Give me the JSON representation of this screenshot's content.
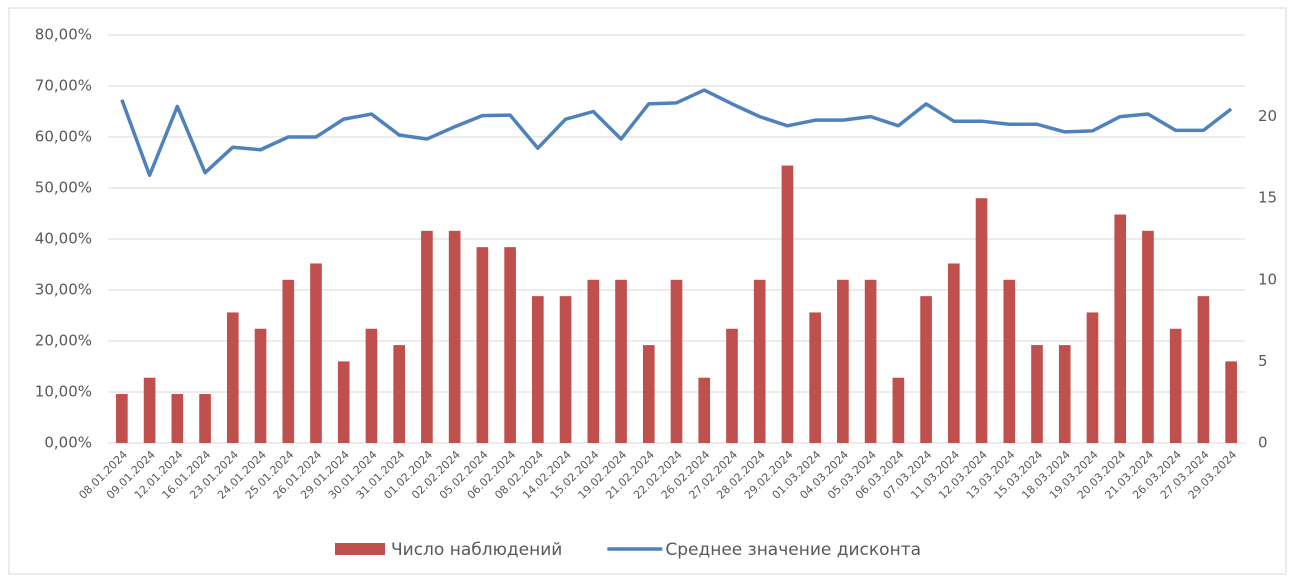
{
  "chart_data": {
    "type": "bar-line",
    "categories": [
      "08.01.2024",
      "09.01.2024",
      "12.01.2024",
      "16.01.2024",
      "23.01.2024",
      "24.01.2024",
      "25.01.2024",
      "26.01.2024",
      "29.01.2024",
      "30.01.2024",
      "31.01.2024",
      "01.02.2024",
      "02.02.2024",
      "05.02.2024",
      "06.02.2024",
      "08.02.2024",
      "14.02.2024",
      "15.02.2024",
      "19.02.2024",
      "21.02.2024",
      "22.02.2024",
      "26.02.2024",
      "27.02.2024",
      "28.02.2024",
      "29.02.2024",
      "01.03.2024",
      "04.03.2024",
      "05.03.2024",
      "06.03.2024",
      "07.03.2024",
      "11.03.2024",
      "12.03.2024",
      "13.03.2024",
      "15.03.2024",
      "18.03.2024",
      "19.03.2024",
      "20.03.2024",
      "21.03.2024",
      "26.03.2024",
      "27.03.2024",
      "29.03.2024"
    ],
    "series": [
      {
        "name": "Число наблюдений",
        "type": "bar",
        "axis": "y2",
        "color": "#c0504d",
        "values": [
          3,
          4,
          3,
          3,
          8,
          7,
          10,
          11,
          5,
          7,
          6,
          13,
          13,
          12,
          12,
          9,
          9,
          10,
          10,
          6,
          10,
          4,
          7,
          10,
          17,
          8,
          10,
          10,
          4,
          9,
          11,
          15,
          10,
          6,
          6,
          8,
          14,
          13,
          7,
          9,
          5
        ]
      },
      {
        "name": "Среднее значение дисконта",
        "type": "line",
        "axis": "y",
        "color": "#4f81bd",
        "values": [
          67.3,
          52.5,
          66,
          53,
          58,
          57.5,
          60,
          60,
          63.5,
          64.5,
          60.4,
          59.6,
          62,
          64.2,
          64.3,
          57.8,
          63.5,
          65,
          59.6,
          66.5,
          66.7,
          69.2,
          66.5,
          64,
          62.2,
          63.3,
          63.3,
          64,
          62.2,
          66.5,
          63.1,
          63.1,
          62.5,
          62.5,
          61,
          61.2,
          64,
          64.5,
          61.3,
          61.3,
          65.5
        ]
      }
    ],
    "ylim": [
      0,
      80
    ],
    "yticks": [
      {
        "value": 0,
        "label": "0,00%"
      },
      {
        "value": 10,
        "label": "10,00%"
      },
      {
        "value": 20,
        "label": "20,00%"
      },
      {
        "value": 30,
        "label": "30,00%"
      },
      {
        "value": 40,
        "label": "40,00%"
      },
      {
        "value": 50,
        "label": "50,00%"
      },
      {
        "value": 60,
        "label": "60,00%"
      },
      {
        "value": 70,
        "label": "70,00%"
      },
      {
        "value": 80,
        "label": "80,00%"
      }
    ],
    "y2lim": [
      0,
      25
    ],
    "y2ticks": [
      0,
      5,
      10,
      15,
      20
    ],
    "grid": true,
    "legend": "bottom"
  }
}
